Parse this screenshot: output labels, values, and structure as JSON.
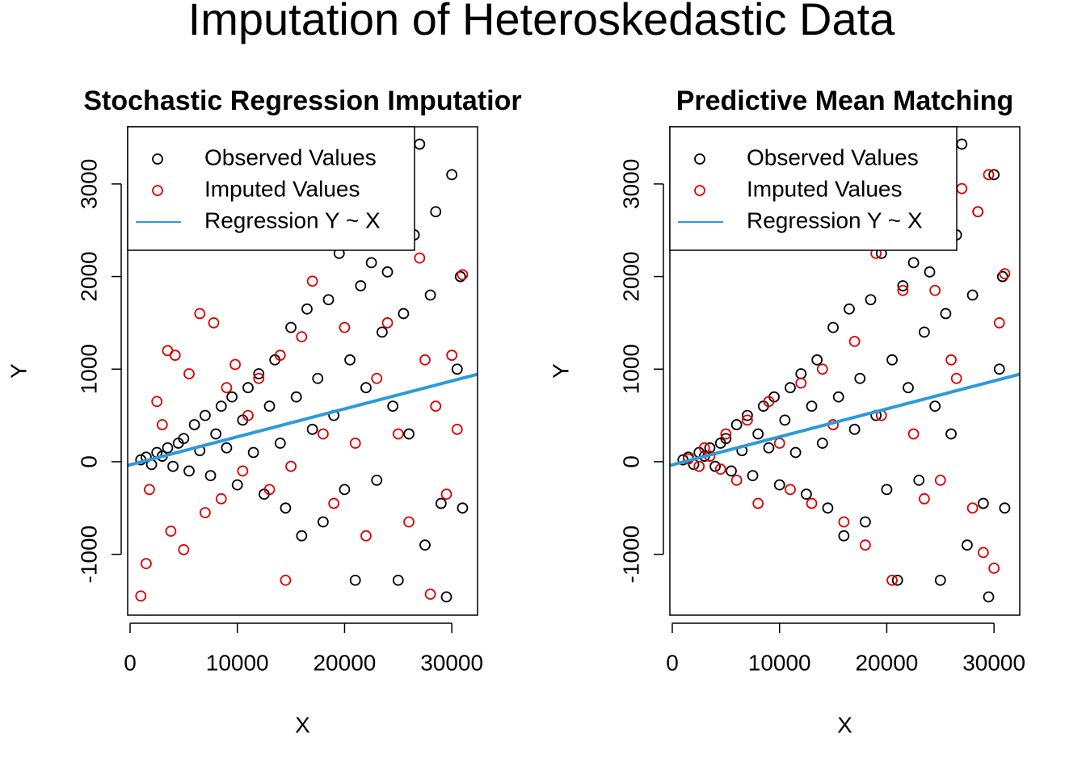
{
  "title": "Imputation of Heteroskedastic Data",
  "chart_data": [
    {
      "type": "scatter",
      "title": "Stochastic Regression Imputatior",
      "xlabel": "X",
      "ylabel": "Y",
      "xlim": [
        -226,
        32400
      ],
      "ylim": [
        -1657,
        3618
      ],
      "xticks": [
        0,
        10000,
        20000,
        30000
      ],
      "yticks": [
        -1000,
        0,
        1000,
        2000,
        3000
      ],
      "legend": "topleft",
      "series": [
        {
          "name": "Observed Values",
          "color": "#000000",
          "x": [
            1000,
            1500,
            2000,
            2500,
            3000,
            3500,
            4000,
            4500,
            5000,
            5500,
            6000,
            6500,
            7000,
            7500,
            8000,
            8500,
            9000,
            9500,
            10000,
            10500,
            11000,
            11500,
            12000,
            12500,
            13000,
            13500,
            14000,
            14500,
            15000,
            15500,
            16000,
            16500,
            17000,
            17500,
            18000,
            18500,
            19000,
            19500,
            20000,
            20500,
            21000,
            21500,
            22000,
            22500,
            23000,
            23500,
            24000,
            24500,
            25000,
            25500,
            26000,
            26500,
            27000,
            27500,
            28000,
            28500,
            29000,
            29500,
            30000,
            30500,
            31000,
            30800
          ],
          "values": [
            20,
            50,
            -30,
            100,
            60,
            150,
            -50,
            200,
            250,
            -100,
            400,
            120,
            500,
            -150,
            300,
            600,
            150,
            700,
            -250,
            450,
            800,
            100,
            950,
            -350,
            600,
            1100,
            200,
            -500,
            1450,
            700,
            -800,
            1650,
            350,
            900,
            -650,
            1750,
            500,
            2250,
            -300,
            1100,
            -1280,
            1900,
            800,
            2150,
            -200,
            1400,
            2050,
            600,
            -1280,
            1600,
            300,
            2450,
            3430,
            -900,
            1800,
            2700,
            -450,
            -1460,
            3100,
            1000,
            -500,
            2000
          ]
        },
        {
          "name": "Imputed Values",
          "color": "#df0000",
          "x": [
            1000,
            1500,
            1800,
            2500,
            3000,
            3500,
            3800,
            4200,
            5000,
            5500,
            6500,
            7000,
            7800,
            8500,
            9000,
            9800,
            10500,
            11000,
            12000,
            13000,
            14000,
            14500,
            15000,
            16000,
            17000,
            18000,
            19000,
            20000,
            21000,
            22000,
            23000,
            24000,
            25000,
            26000,
            27000,
            27500,
            28000,
            28500,
            29500,
            30000,
            31000,
            30500
          ],
          "values": [
            -1450,
            -1100,
            -300,
            650,
            400,
            1200,
            -750,
            1150,
            -950,
            950,
            1600,
            -550,
            1500,
            -400,
            800,
            1050,
            -100,
            500,
            900,
            -300,
            1150,
            -1280,
            -50,
            1350,
            1950,
            300,
            -450,
            1450,
            200,
            -800,
            900,
            1500,
            300,
            -650,
            2200,
            1100,
            -1430,
            600,
            -350,
            1150,
            2020,
            350
          ]
        },
        {
          "name": "Regression Y ~ X",
          "color": "#2e9ad8",
          "intercept": -33,
          "slope": 0.0302
        }
      ]
    },
    {
      "type": "scatter",
      "title": "Predictive Mean Matching",
      "xlabel": "X",
      "ylabel": "Y",
      "xlim": [
        -226,
        32400
      ],
      "ylim": [
        -1657,
        3618
      ],
      "xticks": [
        0,
        10000,
        20000,
        30000
      ],
      "yticks": [
        -1000,
        0,
        1000,
        2000,
        3000
      ],
      "legend": "topleft",
      "series": [
        {
          "name": "Observed Values",
          "color": "#000000",
          "x": [
            1000,
            1500,
            2000,
            2500,
            3000,
            3500,
            4000,
            4500,
            5000,
            5500,
            6000,
            6500,
            7000,
            7500,
            8000,
            8500,
            9000,
            9500,
            10000,
            10500,
            11000,
            11500,
            12000,
            12500,
            13000,
            13500,
            14000,
            14500,
            15000,
            15500,
            16000,
            16500,
            17000,
            17500,
            18000,
            18500,
            19000,
            19500,
            20000,
            20500,
            21000,
            21500,
            22000,
            22500,
            23000,
            23500,
            24000,
            24500,
            25000,
            25500,
            26000,
            26500,
            27000,
            27500,
            28000,
            28500,
            29000,
            29500,
            30000,
            30500,
            31000,
            30800
          ],
          "values": [
            20,
            50,
            -30,
            100,
            60,
            150,
            -50,
            200,
            250,
            -100,
            400,
            120,
            500,
            -150,
            300,
            600,
            150,
            700,
            -250,
            450,
            800,
            100,
            950,
            -350,
            600,
            1100,
            200,
            -500,
            1450,
            700,
            -800,
            1650,
            350,
            900,
            -650,
            1750,
            500,
            2250,
            -300,
            1100,
            -1280,
            1900,
            800,
            2150,
            -200,
            1400,
            2050,
            600,
            -1280,
            1600,
            300,
            2450,
            3430,
            -900,
            1800,
            2700,
            -450,
            -1460,
            3100,
            1000,
            -500,
            2000
          ]
        },
        {
          "name": "Imputed Values",
          "color": "#df0000",
          "x": [
            1500,
            2500,
            3000,
            3500,
            4500,
            5000,
            6000,
            7000,
            8000,
            9000,
            10000,
            11000,
            12000,
            13000,
            14000,
            15000,
            16000,
            17000,
            18000,
            19000,
            19500,
            20500,
            21500,
            22500,
            23500,
            24500,
            25000,
            26000,
            27000,
            28000,
            28500,
            29500,
            30000,
            30500,
            29000,
            26500,
            31000
          ],
          "values": [
            30,
            -50,
            150,
            60,
            -80,
            300,
            -200,
            450,
            -450,
            650,
            200,
            -300,
            850,
            -450,
            1000,
            400,
            -650,
            1300,
            -900,
            2250,
            500,
            -1280,
            1850,
            300,
            -400,
            1850,
            -200,
            1100,
            2950,
            -500,
            2700,
            3100,
            -1150,
            1500,
            -980,
            900,
            2030
          ]
        },
        {
          "name": "Regression Y ~ X",
          "color": "#2e9ad8",
          "intercept": -33,
          "slope": 0.0302
        }
      ]
    }
  ]
}
